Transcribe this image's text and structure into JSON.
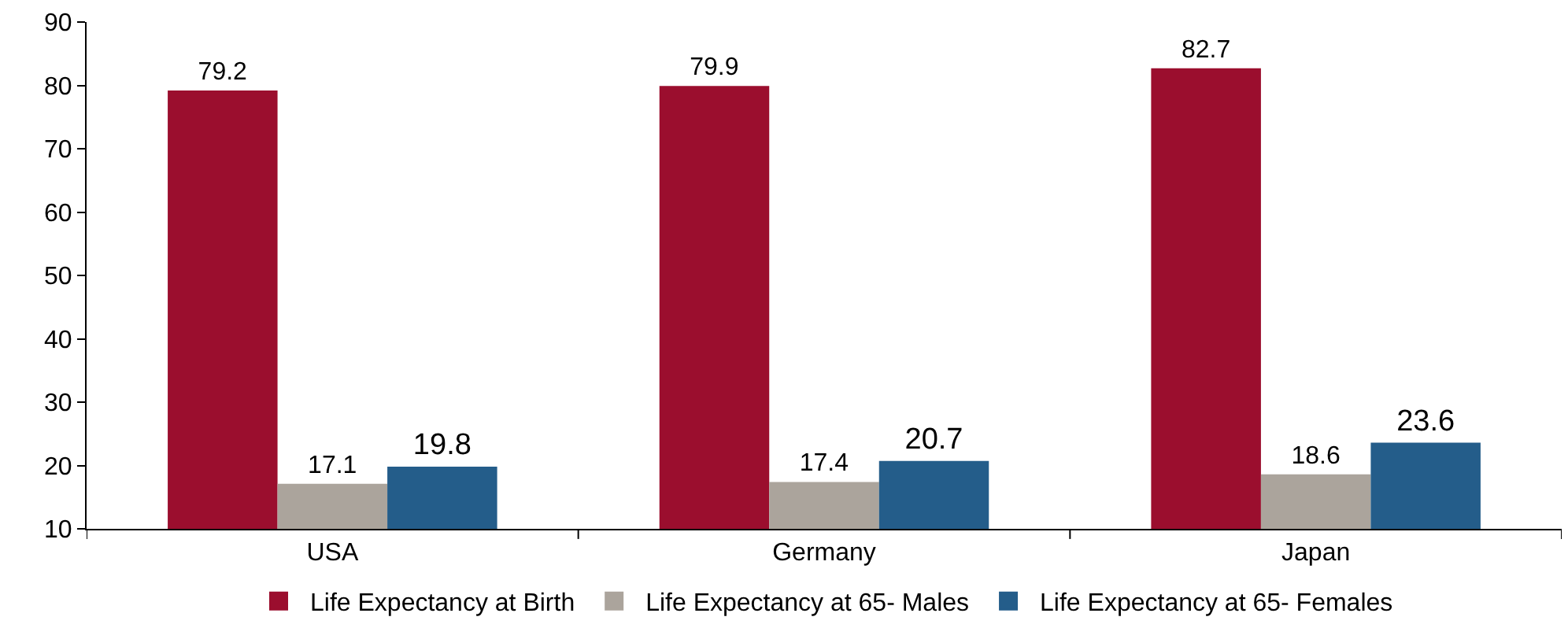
{
  "chart_data": {
    "type": "bar",
    "categories": [
      "USA",
      "Germany",
      "Japan"
    ],
    "series": [
      {
        "name": "Life Expectancy at Birth",
        "color": "#9b0e2e",
        "values": [
          79.2,
          79.9,
          82.7
        ]
      },
      {
        "name": "Life Expectancy at 65- Males",
        "color": "#aba49c",
        "values": [
          17.1,
          17.4,
          18.6
        ]
      },
      {
        "name": "Life Expectancy at 65- Females",
        "color": "#245d8a",
        "values": [
          19.8,
          20.7,
          23.6
        ]
      }
    ],
    "ylim": [
      10,
      90
    ],
    "yticks": [
      10,
      20,
      30,
      40,
      50,
      60,
      70,
      80,
      90
    ],
    "legend": "bottom",
    "data_labels": true
  }
}
